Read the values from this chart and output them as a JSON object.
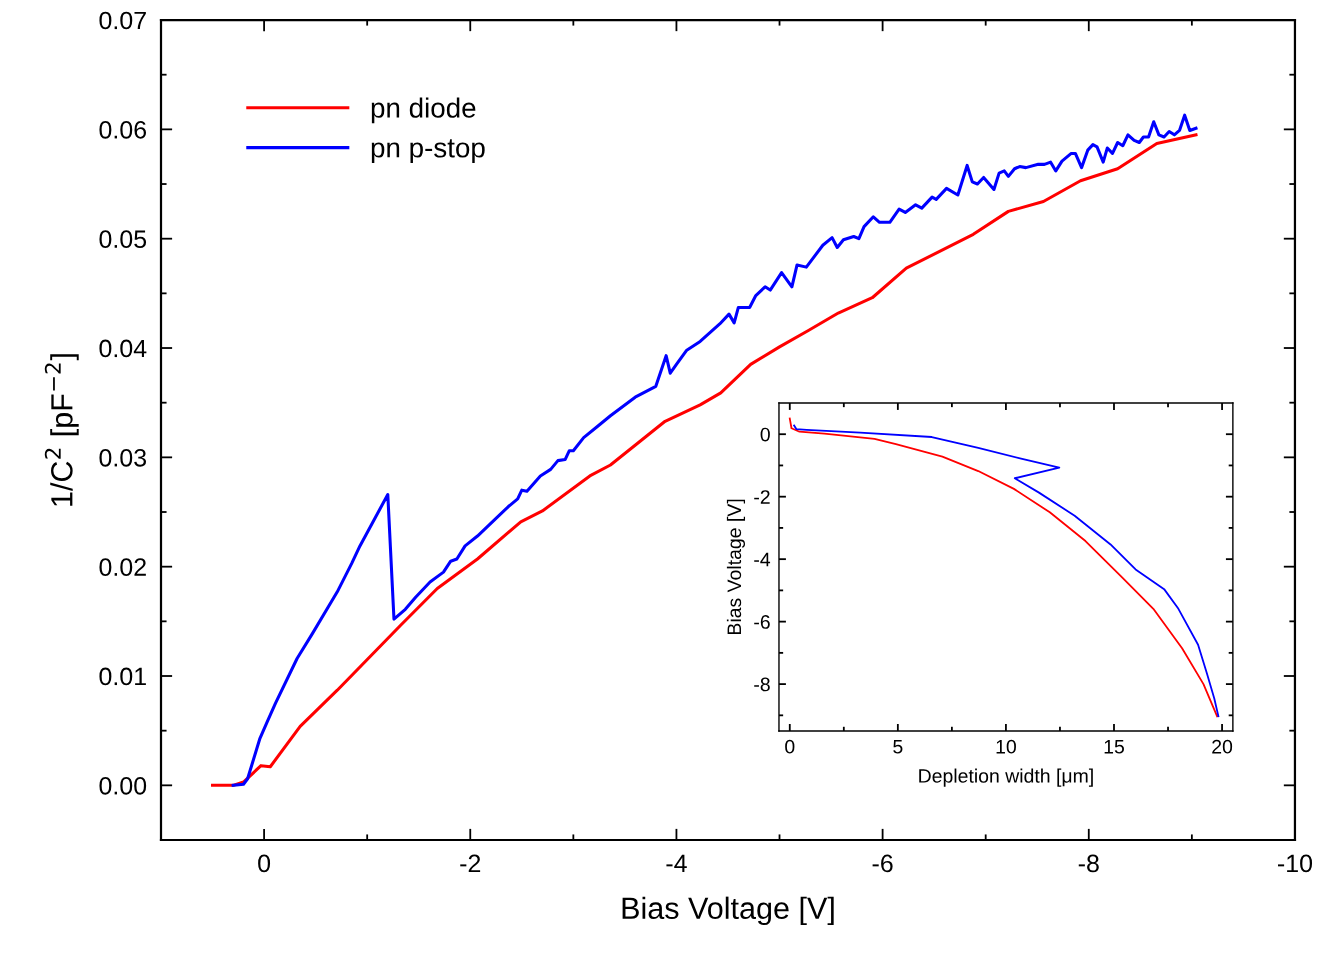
{
  "chart_data": [
    {
      "type": "line",
      "xlabel": "Bias Voltage [V]",
      "ylabel": "1/C$^{2}$ [pF$^{−2}$]",
      "xlim": [
        1,
        -10
      ],
      "ylim": [
        -0.005,
        0.07
      ],
      "xticks": [
        {
          "value": 1,
          "label": null
        },
        0,
        {
          "value": -1,
          "label": null
        },
        -2,
        {
          "value": -3,
          "label": null
        },
        -4,
        {
          "value": -5,
          "label": null
        },
        -6,
        {
          "value": -7,
          "label": null
        },
        -8,
        {
          "value": -9,
          "label": null
        },
        -10
      ],
      "yticks": [
        {
          "value": 0,
          "label": "0.00"
        },
        {
          "value": 0.005,
          "label": null
        },
        {
          "value": 0.01,
          "label": "0.01"
        },
        {
          "value": 0.015,
          "label": null
        },
        {
          "value": 0.02,
          "label": "0.02"
        },
        {
          "value": 0.025,
          "label": null
        },
        {
          "value": 0.03,
          "label": "0.03"
        },
        {
          "value": 0.035,
          "label": null
        },
        {
          "value": 0.04,
          "label": "0.04"
        },
        {
          "value": 0.045,
          "label": null
        },
        {
          "value": 0.05,
          "label": "0.05"
        },
        {
          "value": 0.055,
          "label": null
        },
        {
          "value": 0.06,
          "label": "0.06"
        },
        {
          "value": 0.065,
          "label": null
        },
        {
          "value": 0.07,
          "label": "0.07"
        }
      ],
      "legend": "top left",
      "grid": false,
      "marker": "none",
      "line_style": "solid",
      "series": [
        {
          "name": "pn diode",
          "color": "#ff0000",
          "x": [
            0.5,
            0.3,
            0.2,
            0.03,
            -0.06,
            -0.35,
            -0.71,
            -1.32,
            -1.68,
            -2.07,
            -2.49,
            -2.7,
            -3.16,
            -3.36,
            -3.89,
            -4.23,
            -4.43,
            -4.72,
            -5.0,
            -5.28,
            -5.57,
            -5.9,
            -6.23,
            -6.88,
            -7.22,
            -7.56,
            -7.92,
            -8.28,
            -8.66,
            -9.04
          ],
          "values": [
            0,
            0,
            0.0003,
            0.0018,
            0.0017,
            0.0054,
            0.0087,
            0.0146,
            0.018,
            0.0207,
            0.0241,
            0.0251,
            0.0283,
            0.0293,
            0.0333,
            0.0348,
            0.0359,
            0.0385,
            0.0401,
            0.0416,
            0.0432,
            0.0446,
            0.0473,
            0.0504,
            0.0525,
            0.0534,
            0.0553,
            0.0564,
            0.0587,
            0.0595
          ]
        },
        {
          "name": "pn p-stop",
          "color": "#0000ff",
          "x": [
            0.3,
            0.2,
            0.16,
            0.04,
            -0.03,
            -0.11,
            -0.32,
            -0.47,
            -0.71,
            -0.85,
            -0.93,
            -1.2,
            -1.26,
            -1.37,
            -1.47,
            -1.61,
            -1.74,
            -1.81,
            -1.87,
            -1.95,
            -2.07,
            -2.26,
            -2.37,
            -2.46,
            -2.5,
            -2.55,
            -2.68,
            -2.78,
            -2.85,
            -2.92,
            -2.96,
            -3.0,
            -3.1,
            -3.23,
            -3.36,
            -3.6,
            -3.8,
            -3.9,
            -3.94,
            -4.0,
            -4.1,
            -4.23,
            -4.42,
            -4.51,
            -4.56,
            -4.6,
            -4.71,
            -4.77,
            -4.86,
            -4.91,
            -5.02,
            -5.12,
            -5.17,
            -5.26,
            -5.42,
            -5.51,
            -5.56,
            -5.62,
            -5.72,
            -5.77,
            -5.82,
            -5.91,
            -5.97,
            -6.07,
            -6.16,
            -6.22,
            -6.32,
            -6.38,
            -6.48,
            -6.52,
            -6.62,
            -6.73,
            -6.82,
            -6.87,
            -6.92,
            -6.98,
            -7.08,
            -7.13,
            -7.18,
            -7.22,
            -7.28,
            -7.33,
            -7.39,
            -7.51,
            -7.57,
            -7.63,
            -7.68,
            -7.74,
            -7.83,
            -7.87,
            -7.93,
            -7.99,
            -8.04,
            -8.08,
            -8.14,
            -8.18,
            -8.23,
            -8.28,
            -8.33,
            -8.38,
            -8.44,
            -8.49,
            -8.53,
            -8.58,
            -8.63,
            -8.68,
            -8.73,
            -8.78,
            -8.83,
            -8.88,
            -8.93,
            -8.98,
            -9.04
          ],
          "values": [
            0,
            0.0001,
            0.0006,
            0.0043,
            0.0058,
            0.0075,
            0.0116,
            0.0139,
            0.0177,
            0.0203,
            0.0219,
            0.0266,
            0.0152,
            0.0161,
            0.0172,
            0.0186,
            0.0195,
            0.0205,
            0.0207,
            0.0219,
            0.0228,
            0.0245,
            0.0255,
            0.0262,
            0.027,
            0.0269,
            0.0283,
            0.0289,
            0.0297,
            0.0298,
            0.0306,
            0.0306,
            0.0318,
            0.0328,
            0.0338,
            0.0355,
            0.0365,
            0.0393,
            0.0377,
            0.0385,
            0.0398,
            0.0406,
            0.0422,
            0.0431,
            0.0423,
            0.0437,
            0.0437,
            0.0448,
            0.0456,
            0.0453,
            0.0469,
            0.0456,
            0.0476,
            0.0474,
            0.0494,
            0.0501,
            0.0492,
            0.0499,
            0.0502,
            0.05,
            0.0511,
            0.052,
            0.0515,
            0.0515,
            0.0527,
            0.0524,
            0.0531,
            0.0528,
            0.0538,
            0.0536,
            0.0546,
            0.054,
            0.0567,
            0.0552,
            0.055,
            0.0556,
            0.0545,
            0.056,
            0.0562,
            0.0557,
            0.0564,
            0.0566,
            0.0565,
            0.0568,
            0.0568,
            0.057,
            0.0562,
            0.0571,
            0.0578,
            0.0578,
            0.0565,
            0.0581,
            0.0586,
            0.0584,
            0.057,
            0.0583,
            0.0578,
            0.0588,
            0.0585,
            0.0595,
            0.059,
            0.0588,
            0.0593,
            0.0593,
            0.0607,
            0.0595,
            0.0593,
            0.0598,
            0.0595,
            0.0599,
            0.0613,
            0.0599,
            0.0601
          ]
        }
      ]
    },
    {
      "type": "line",
      "xlabel": "Depletion width [μm]",
      "ylabel": "Bias Voltage [V]",
      "xlim": [
        -0.5,
        20.5
      ],
      "ylim": [
        -9.5,
        1
      ],
      "xticks": [
        0,
        {
          "value": 2.5,
          "label": null
        },
        5,
        {
          "value": 7.5,
          "label": null
        },
        10,
        {
          "value": 12.5,
          "label": null
        },
        15,
        {
          "value": 17.5,
          "label": null
        },
        20
      ],
      "yticks": [
        {
          "value": -9,
          "label": null
        },
        -8,
        {
          "value": -7,
          "label": null
        },
        -6,
        {
          "value": -5,
          "label": null
        },
        -4,
        {
          "value": -3,
          "label": null
        },
        -2,
        {
          "value": -1,
          "label": null
        },
        0
      ],
      "grid": false,
      "marker": "none",
      "line_style": "solid",
      "series": [
        {
          "color": "#ff0000",
          "x": [
            0,
            0.08,
            0.45,
            1.6,
            3.92,
            4.91,
            7.06,
            8.72,
            10.37,
            12.03,
            13.68,
            15.34,
            16.82,
            18.15,
            19.14,
            19.77
          ],
          "values": [
            0.5,
            0.19,
            0.08,
            0.02,
            -0.15,
            -0.32,
            -0.72,
            -1.18,
            -1.75,
            -2.5,
            -3.42,
            -4.56,
            -5.59,
            -6.85,
            -8.0,
            -9.03
          ]
        },
        {
          "color": "#0000ff",
          "x": [
            0.2,
            0.31,
            0.78,
            3.26,
            6.57,
            8.72,
            10.7,
            12.47,
            10.41,
            11.53,
            13.18,
            14.84,
            16.0,
            17.32,
            17.98,
            18.89,
            19.3,
            19.64,
            19.83
          ],
          "values": [
            0.28,
            0.16,
            0.14,
            0.05,
            -0.09,
            -0.44,
            -0.78,
            -1.07,
            -1.41,
            -1.87,
            -2.61,
            -3.53,
            -4.33,
            -4.96,
            -5.59,
            -6.74,
            -7.66,
            -8.46,
            -9.03
          ]
        }
      ]
    }
  ]
}
